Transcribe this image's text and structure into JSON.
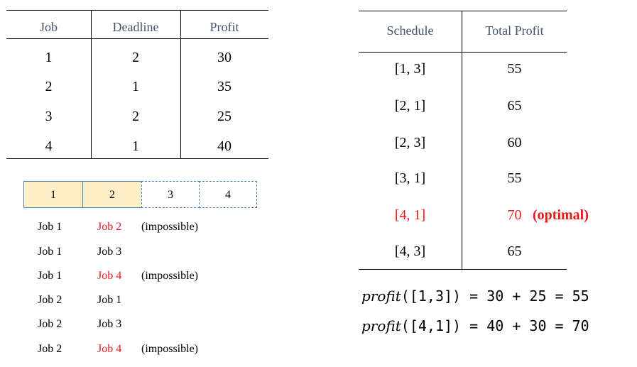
{
  "jobs_table": {
    "headers": [
      "Job",
      "Deadline",
      "Profit"
    ],
    "rows": [
      [
        "1",
        "2",
        "30"
      ],
      [
        "2",
        "1",
        "35"
      ],
      [
        "3",
        "2",
        "25"
      ],
      [
        "4",
        "1",
        "40"
      ]
    ]
  },
  "slots": [
    {
      "label": "1",
      "filled": true
    },
    {
      "label": "2",
      "filled": true
    },
    {
      "label": "3",
      "filled": false
    },
    {
      "label": "4",
      "filled": false
    }
  ],
  "combinations": [
    {
      "first": "Job 1",
      "second": "Job 2",
      "second_red": true,
      "note": "(impossible)"
    },
    {
      "first": "Job 1",
      "second": "Job 3",
      "second_red": false,
      "note": ""
    },
    {
      "first": "Job 1",
      "second": "Job 4",
      "second_red": true,
      "note": "(impossible)"
    },
    {
      "first": "Job 2",
      "second": "Job 1",
      "second_red": false,
      "note": ""
    },
    {
      "first": "Job 2",
      "second": "Job 3",
      "second_red": false,
      "note": ""
    },
    {
      "first": "Job 2",
      "second": "Job 4",
      "second_red": true,
      "note": "(impossible)"
    }
  ],
  "schedule_table": {
    "headers": [
      "Schedule",
      "Total Profit"
    ],
    "rows": [
      {
        "schedule": "[1, 3]",
        "profit": "55",
        "highlight": false,
        "label": ""
      },
      {
        "schedule": "[2, 1]",
        "profit": "65",
        "highlight": false,
        "label": ""
      },
      {
        "schedule": "[2, 3]",
        "profit": "60",
        "highlight": false,
        "label": ""
      },
      {
        "schedule": "[3, 1]",
        "profit": "55",
        "highlight": false,
        "label": ""
      },
      {
        "schedule": "[4, 1]",
        "profit": "70",
        "highlight": true,
        "label": "(optimal)"
      },
      {
        "schedule": "[4, 3]",
        "profit": "65",
        "highlight": false,
        "label": ""
      }
    ]
  },
  "formulas": [
    {
      "fn": "profit",
      "expr": "([1,3]) = 30 + 25 = 55"
    },
    {
      "fn": "profit",
      "expr": "([4,1]) = 40 + 30 = 70"
    }
  ],
  "colors": {
    "highlight": "#e8191a",
    "header_text": "#44546a",
    "slot_fill": "#fdf0c8",
    "slot_border": "#4a86b8"
  }
}
